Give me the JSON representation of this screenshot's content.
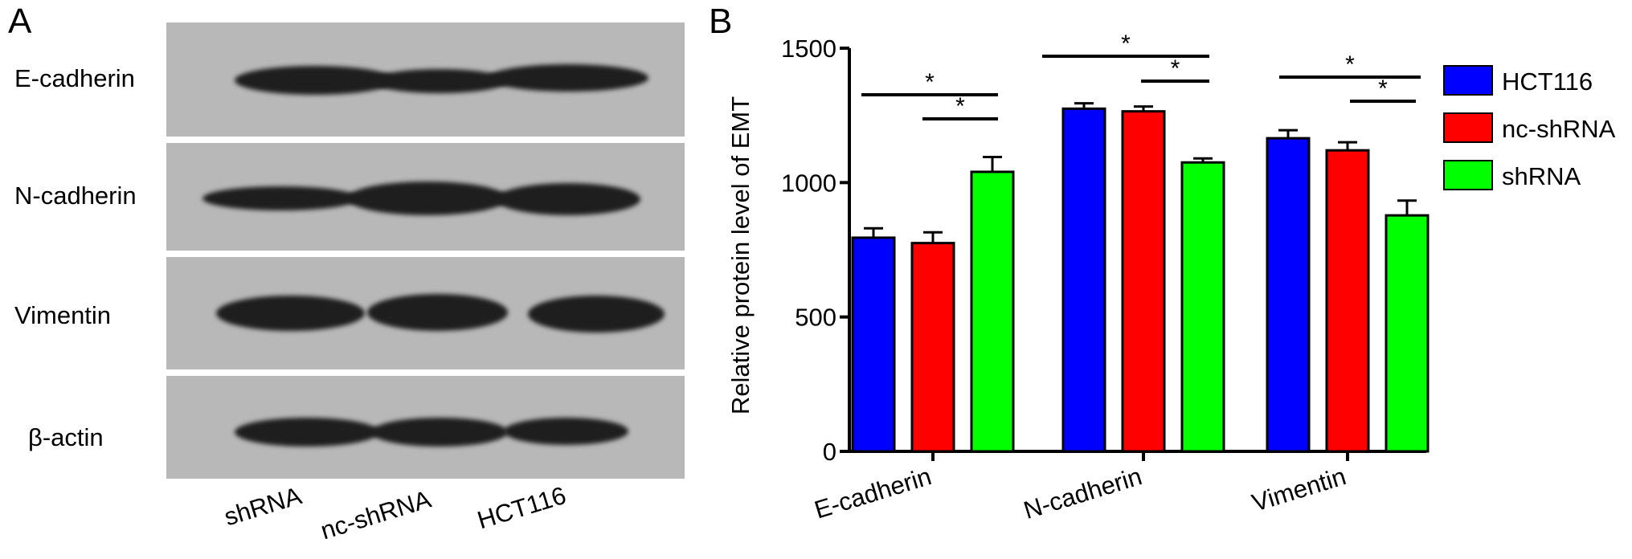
{
  "panels": {
    "a": "A",
    "b": "B"
  },
  "blot": {
    "rows": [
      "E-cadherin",
      "N-cadherin",
      "Vimentin",
      "β-actin"
    ],
    "lanes": [
      "shRNA",
      "nc-shRNA",
      "HCT116"
    ]
  },
  "chart_data": {
    "type": "bar",
    "categories": [
      "E-cadherin",
      "N-cadherin",
      "Vimentin"
    ],
    "ylabel": "Relative protein level of EMT",
    "xlabel": "",
    "ylim": [
      0,
      1500
    ],
    "yticks": [
      0,
      500,
      1000,
      1500
    ],
    "series": [
      {
        "name": "HCT116",
        "color": "#0000ff",
        "values": [
          795,
          1275,
          1165
        ],
        "errors": [
          35,
          20,
          30
        ]
      },
      {
        "name": "nc-shRNA",
        "color": "#ff0000",
        "values": [
          775,
          1265,
          1120
        ],
        "errors": [
          40,
          18,
          30
        ]
      },
      {
        "name": "shRNA",
        "color": "#00ff00",
        "values": [
          1040,
          1075,
          878
        ],
        "errors": [
          55,
          15,
          55
        ]
      }
    ],
    "annotations": [
      "*",
      "*",
      "*",
      "*",
      "*",
      "*"
    ],
    "legend_position": "right"
  }
}
